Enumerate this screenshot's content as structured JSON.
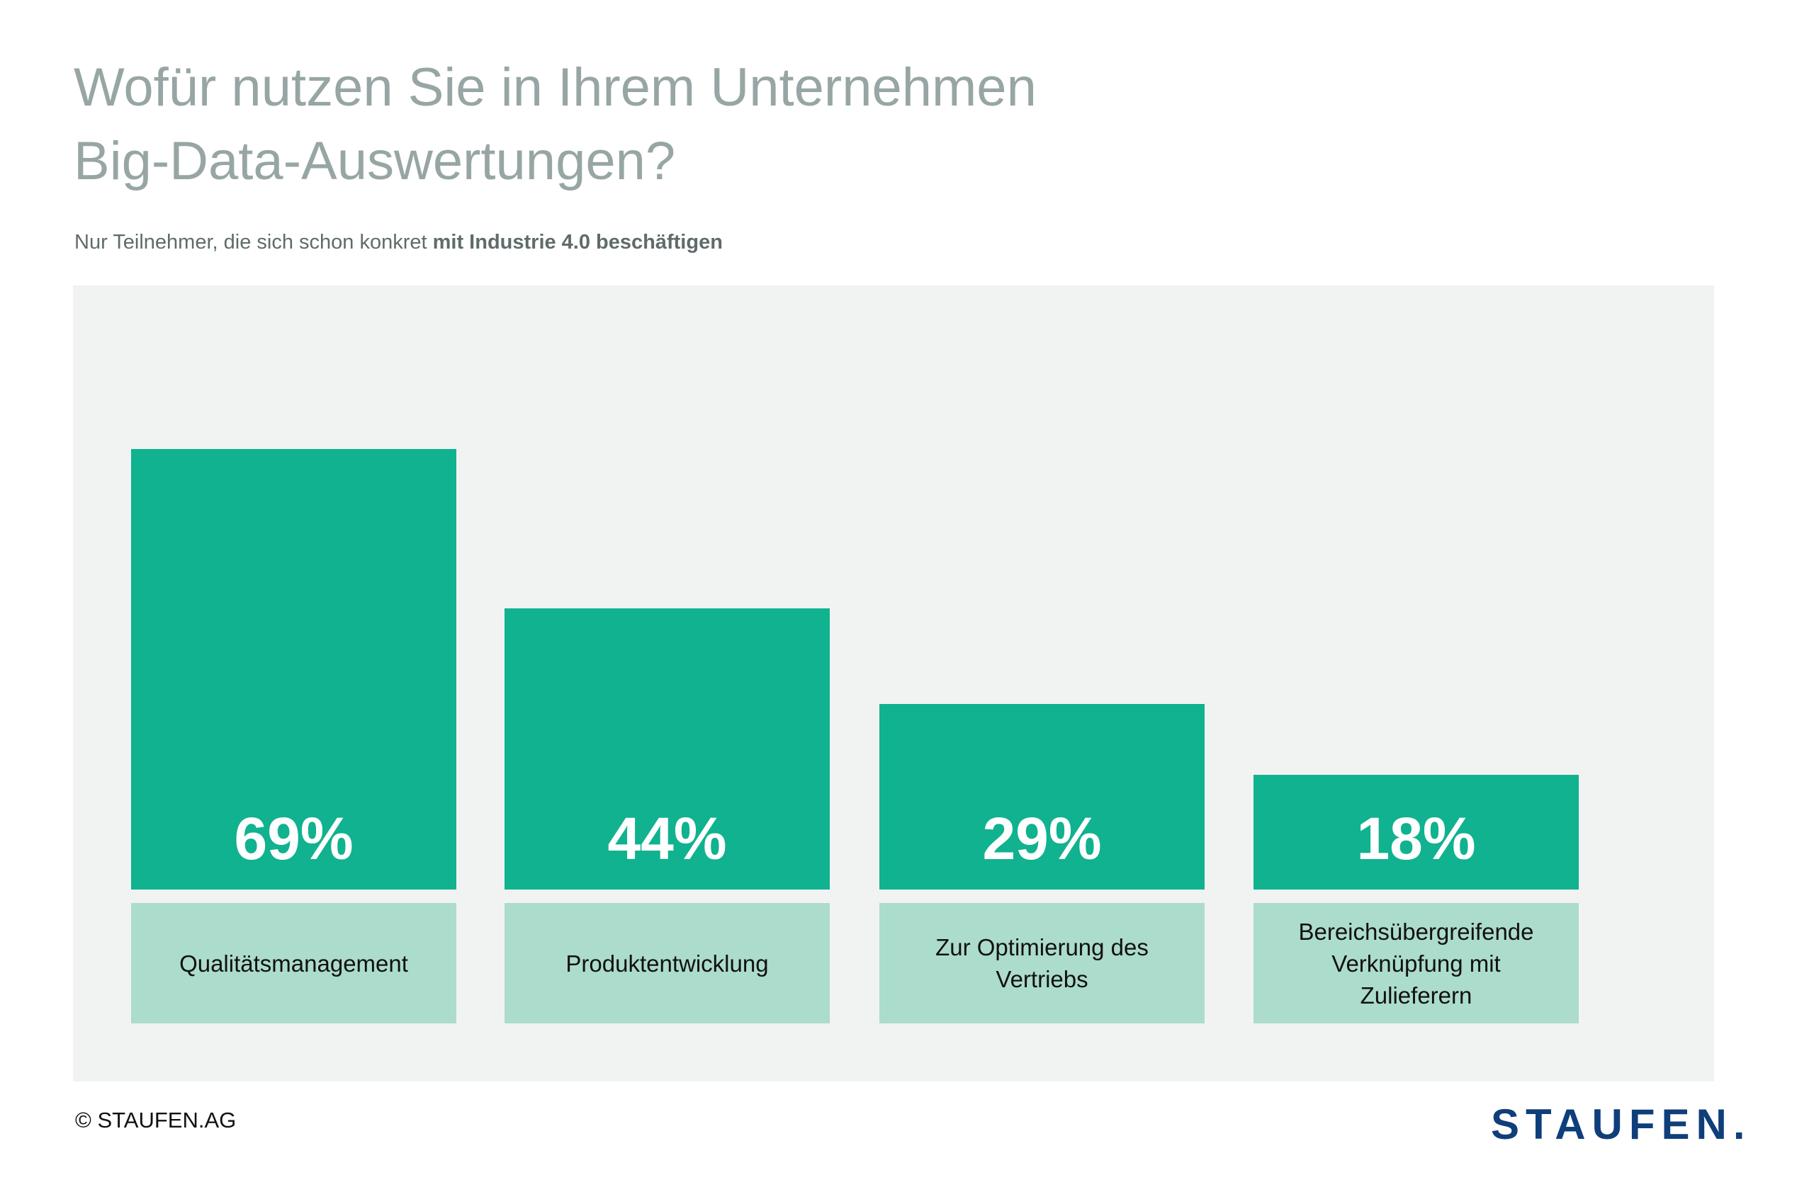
{
  "title": "Wofür nutzen Sie in Ihrem Unternehmen Big-Data-Auswertungen?",
  "title_lines": [
    "Wofür nutzen Sie in Ihrem Unternehmen",
    "Big-Data-Auswertungen?"
  ],
  "subtitle": {
    "normal": "Nur Teilnehmer, die sich schon konkret ",
    "bold": "mit Industrie 4.0 beschäftigen"
  },
  "chart_data": {
    "type": "bar",
    "title": "Wofür nutzen Sie in Ihrem Unternehmen Big-Data-Auswertungen?",
    "categories": [
      "Qualitätsmanagement",
      "Produktentwicklung",
      "Zur Optimierung des Vertriebs",
      "Bereichsübergreifende Verknüpfung mit Zulieferern"
    ],
    "values": [
      69,
      44,
      29,
      18
    ],
    "data_labels": [
      "69%",
      "44%",
      "29%",
      "18%"
    ],
    "unit": "%",
    "xlabel": "",
    "ylabel": "",
    "ylim": [
      0,
      100
    ],
    "grid": false,
    "colors": {
      "bar": "#10b28f",
      "label_box": "#acdccb",
      "panel": "#f1f3f2"
    }
  },
  "footer": {
    "copyright": "© STAUFEN.AG",
    "logo": "STAUFEN."
  },
  "colors": {
    "title": "#97a6a4",
    "logo": "#0f3f7a"
  }
}
